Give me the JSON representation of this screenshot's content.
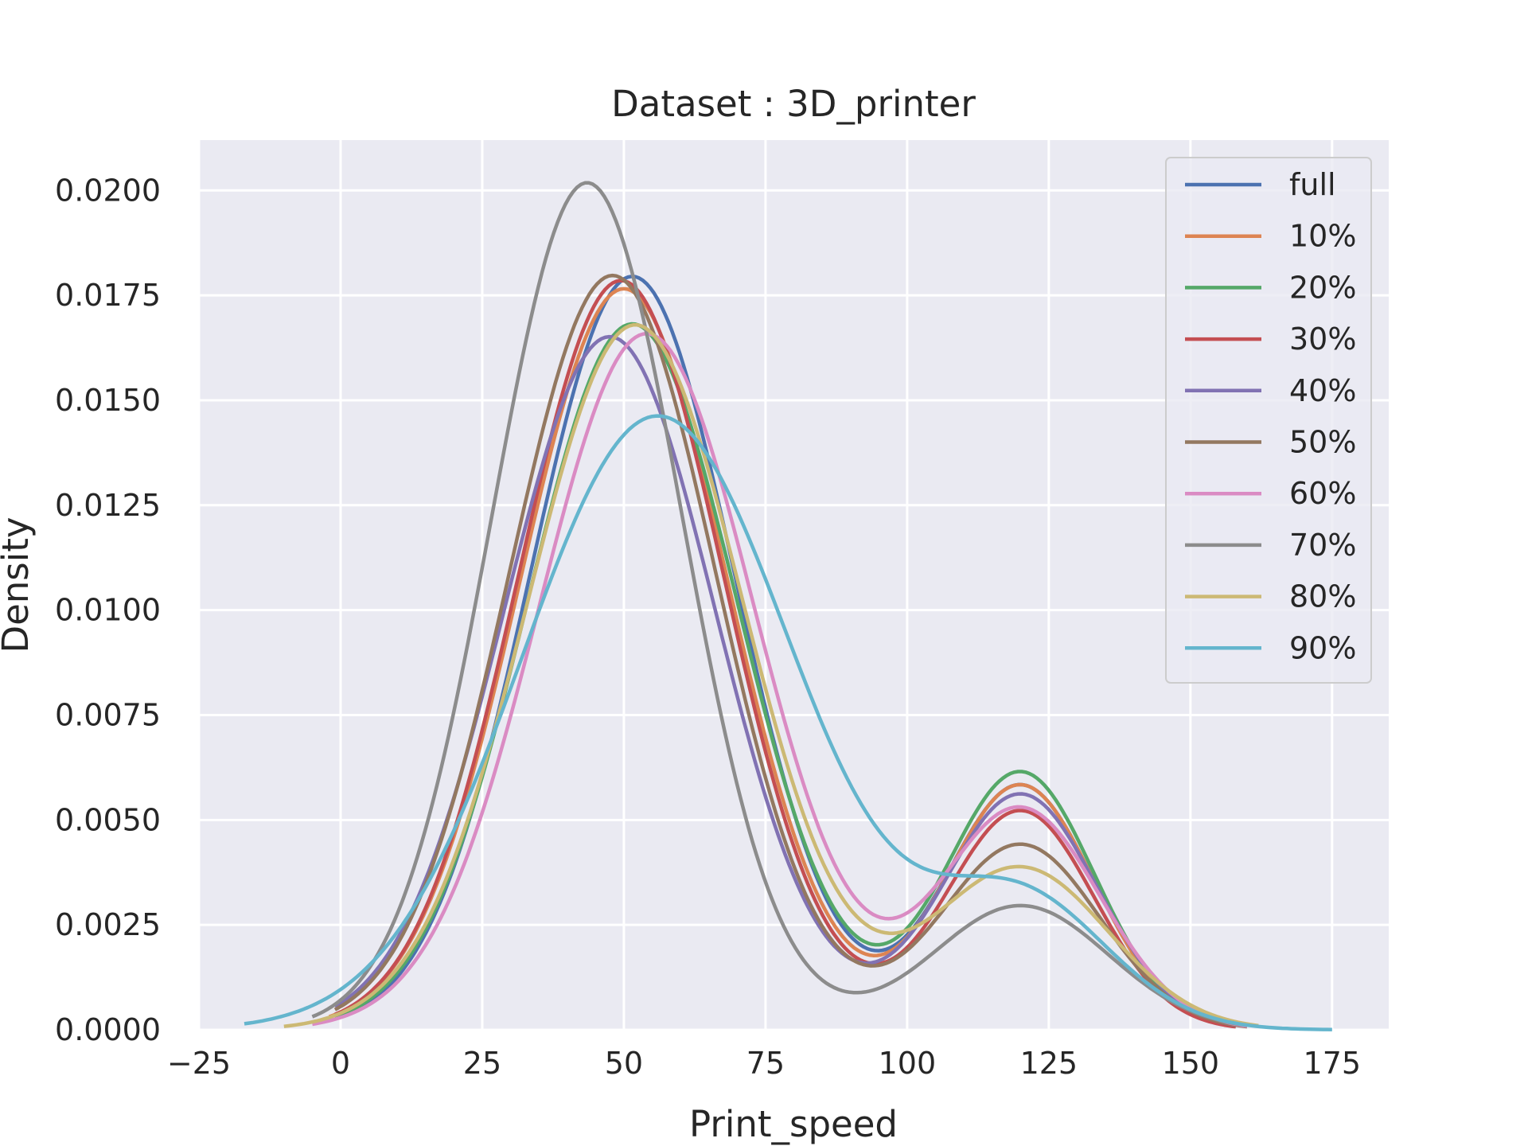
{
  "chart_data": {
    "type": "line",
    "title": "Dataset : 3D_printer",
    "xlabel": "Print_speed",
    "ylabel": "Density",
    "xlim": [
      -25,
      185
    ],
    "ylim": [
      0,
      0.0212
    ],
    "xticks": [
      -25,
      0,
      25,
      50,
      75,
      100,
      125,
      150,
      175
    ],
    "xtick_labels": [
      "−25",
      "0",
      "25",
      "50",
      "75",
      "100",
      "125",
      "150",
      "175"
    ],
    "yticks": [
      0,
      0.0025,
      0.005,
      0.0075,
      0.01,
      0.0125,
      0.015,
      0.0175,
      0.02
    ],
    "ytick_labels": [
      "0.0000",
      "0.0025",
      "0.0050",
      "0.0075",
      "0.0100",
      "0.0125",
      "0.0150",
      "0.0175",
      "0.0200"
    ],
    "grid": true,
    "legend_position": "top-right",
    "background_color": "#eaeaf2",
    "series": [
      {
        "name": "full",
        "color": "#4c72b0",
        "x_range": [
          2,
          158
        ],
        "components": [
          {
            "w": 0.81,
            "mu": 51.5,
            "sd": 18.0
          },
          {
            "w": 0.19,
            "mu": 120,
            "sd": 13.0
          }
        ]
      },
      {
        "name": "10%",
        "color": "#dd8452",
        "x_range": [
          -2,
          158
        ],
        "components": [
          {
            "w": 0.81,
            "mu": 50,
            "sd": 18.3
          },
          {
            "w": 0.19,
            "mu": 120,
            "sd": 13.0
          }
        ]
      },
      {
        "name": "20%",
        "color": "#55a868",
        "x_range": [
          -1,
          158
        ],
        "components": [
          {
            "w": 0.78,
            "mu": 51.5,
            "sd": 18.5
          },
          {
            "w": 0.2,
            "mu": 120,
            "sd": 13.0
          }
        ]
      },
      {
        "name": "30%",
        "color": "#c44e52",
        "x_range": [
          -1,
          158
        ],
        "components": [
          {
            "w": 0.81,
            "mu": 49.5,
            "sd": 18.1
          },
          {
            "w": 0.17,
            "mu": 120,
            "sd": 13.0
          }
        ]
      },
      {
        "name": "40%",
        "color": "#8172b3",
        "x_range": [
          -1,
          158
        ],
        "components": [
          {
            "w": 0.77,
            "mu": 47.5,
            "sd": 18.6
          },
          {
            "w": 0.19,
            "mu": 120,
            "sd": 13.5
          }
        ]
      },
      {
        "name": "50%",
        "color": "#937860",
        "x_range": [
          -1,
          160
        ],
        "components": [
          {
            "w": 0.82,
            "mu": 48.0,
            "sd": 18.2
          },
          {
            "w": 0.155,
            "mu": 120,
            "sd": 14.0
          }
        ]
      },
      {
        "name": "60%",
        "color": "#da8bc3",
        "x_range": [
          -5,
          160
        ],
        "components": [
          {
            "w": 0.79,
            "mu": 54.0,
            "sd": 19.0
          },
          {
            "w": 0.185,
            "mu": 120,
            "sd": 14.0
          }
        ]
      },
      {
        "name": "70%",
        "color": "#8c8c8c",
        "x_range": [
          -5,
          160
        ],
        "components": [
          {
            "w": 0.85,
            "mu": 43.5,
            "sd": 16.8
          },
          {
            "w": 0.115,
            "mu": 120,
            "sd": 15.5
          }
        ]
      },
      {
        "name": "80%",
        "color": "#ccb974",
        "x_range": [
          -10,
          162
        ],
        "components": [
          {
            "w": 0.8,
            "mu": 52.0,
            "sd": 19.0
          },
          {
            "w": 0.15,
            "mu": 120,
            "sd": 15.5
          }
        ]
      },
      {
        "name": "90%",
        "color": "#64b5cd",
        "x_range": [
          -17,
          175
        ],
        "components": [
          {
            "w": 0.88,
            "mu": 56.0,
            "sd": 24.0
          },
          {
            "w": 0.12,
            "mu": 120,
            "sd": 15.5
          }
        ]
      }
    ]
  }
}
